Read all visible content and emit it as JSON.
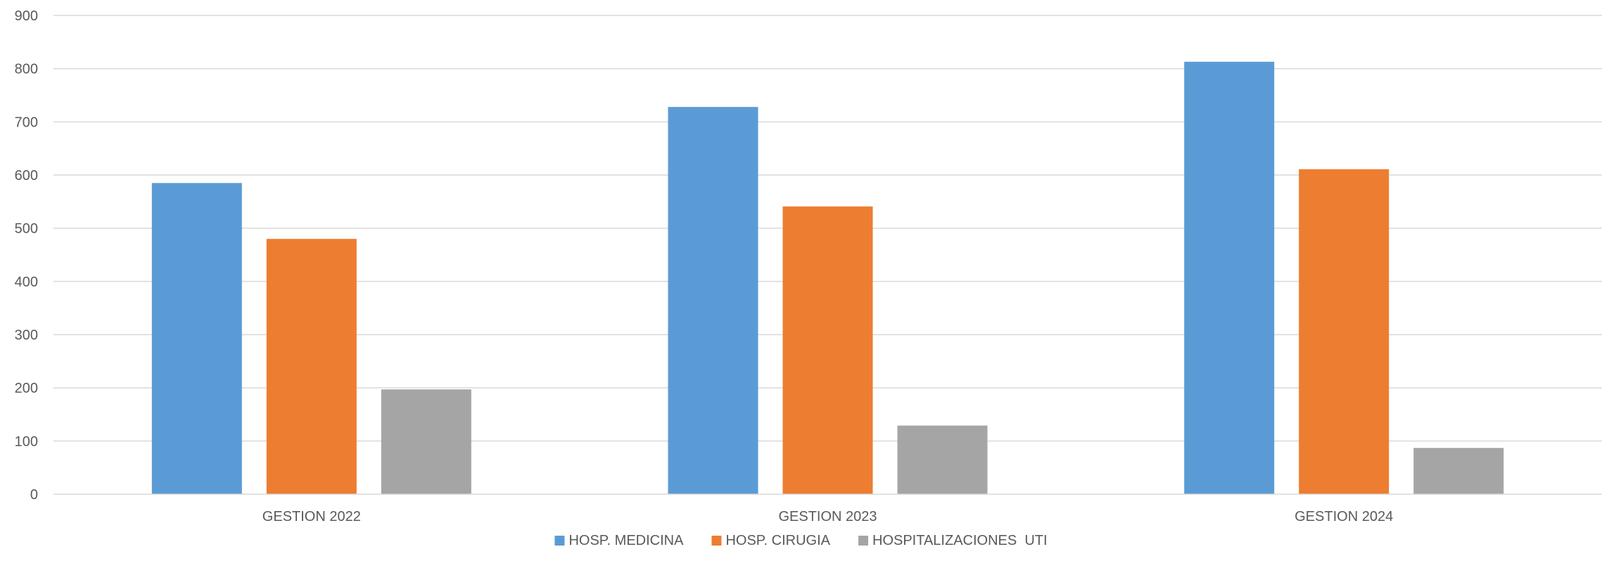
{
  "chart_data": {
    "type": "bar",
    "categories": [
      "GESTION 2022",
      "GESTION 2023",
      "GESTION 2024"
    ],
    "series": [
      {
        "name": "HOSP. MEDICINA",
        "values": [
          585,
          728,
          813
        ],
        "color": "#5b9bd5"
      },
      {
        "name": "HOSP. CIRUGIA",
        "values": [
          480,
          541,
          611
        ],
        "color": "#ed7d31"
      },
      {
        "name": "HOSPITALIZACIONES  UTI",
        "values": [
          197,
          129,
          87
        ],
        "color": "#a5a5a5"
      }
    ],
    "yticks": [
      0,
      100,
      200,
      300,
      400,
      500,
      600,
      700,
      800,
      900
    ],
    "ylim": [
      0,
      900
    ],
    "grid": true,
    "legend": "bottom"
  }
}
